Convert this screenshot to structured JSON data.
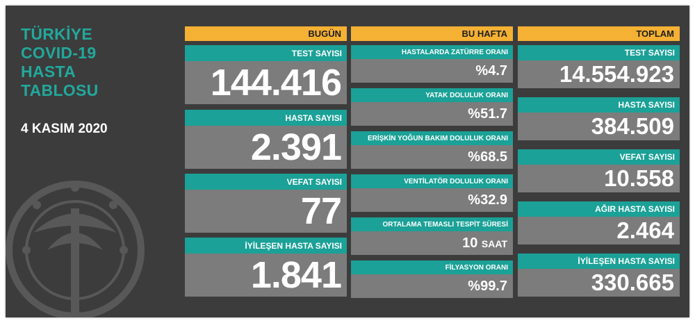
{
  "title_lines": [
    "TÜRKİYE",
    "COVID-19",
    "HASTA",
    "TABLOSU"
  ],
  "date": "4 KASIM 2020",
  "colors": {
    "panel_bg": "#3c3c3c",
    "accent_orange": "#f5b133",
    "teal": "#1ba197",
    "card_gray": "#7c7c7c",
    "title_teal": "#22a89c"
  },
  "today": {
    "header": "BUGÜN",
    "cards": [
      {
        "label": "TEST SAYISI",
        "value": "144.416"
      },
      {
        "label": "HASTA SAYISI",
        "value": "2.391"
      },
      {
        "label": "VEFAT SAYISI",
        "value": "77"
      },
      {
        "label": "İYİLEŞEN HASTA SAYISI",
        "value": "1.841"
      }
    ]
  },
  "this_week": {
    "header": "BU HAFTA",
    "cards": [
      {
        "label": "HASTALARDA ZATÜRRE ORANI",
        "value": "%4.7",
        "unit": ""
      },
      {
        "label": "YATAK DOLULUK ORANI",
        "value": "%51.7",
        "unit": ""
      },
      {
        "label": "ERİŞKİN YOĞUN BAKIM DOLULUK ORANI",
        "value": "%68.5",
        "unit": ""
      },
      {
        "label": "VENTİLATÖR DOLULUK ORANI",
        "value": "%32.9",
        "unit": ""
      },
      {
        "label": "ORTALAMA TEMASLI TESPİT SÜRESİ",
        "value": "10",
        "unit": "SAAT"
      },
      {
        "label": "FİLYASYON ORANI",
        "value": "%99.7",
        "unit": ""
      }
    ]
  },
  "total": {
    "header": "TOPLAM",
    "cards": [
      {
        "label": "TEST SAYISI",
        "value": "14.554.923"
      },
      {
        "label": "HASTA SAYISI",
        "value": "384.509"
      },
      {
        "label": "VEFAT SAYISI",
        "value": "10.558"
      },
      {
        "label": "AĞIR HASTA SAYISI",
        "value": "2.464"
      },
      {
        "label": "İYİLEŞEN HASTA SAYISI",
        "value": "330.665"
      }
    ]
  }
}
